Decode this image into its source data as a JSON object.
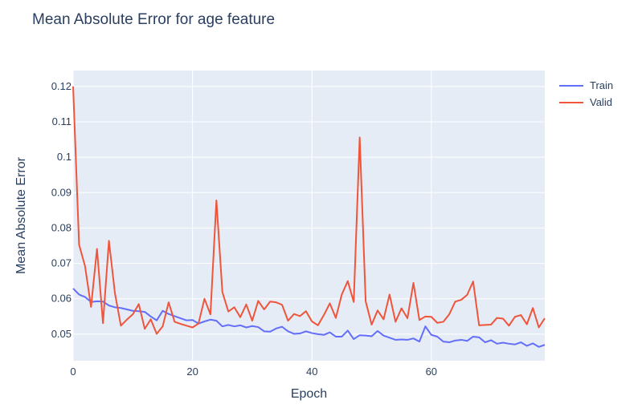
{
  "chart_data": {
    "type": "line",
    "title": "Mean Absolute Error for age feature",
    "xlabel": "Epoch",
    "ylabel": "Mean Absolute Error",
    "xlim": [
      0,
      79
    ],
    "ylim": [
      0.0425,
      0.1245
    ],
    "xticks": [
      0,
      20,
      40,
      60
    ],
    "yticks": [
      0.05,
      0.06,
      0.07,
      0.08,
      0.09,
      0.1,
      0.11,
      0.12
    ],
    "ytick_labels": [
      "0.05",
      "0.06",
      "0.07",
      "0.08",
      "0.09",
      "0.1",
      "0.11",
      "0.12"
    ],
    "grid": true,
    "legend_position": "top-right",
    "background": "#e5ecf6",
    "series": [
      {
        "name": "Train",
        "color": "#636efa",
        "x": [
          0,
          1,
          2,
          3,
          4,
          5,
          6,
          7,
          8,
          9,
          10,
          11,
          12,
          13,
          14,
          15,
          16,
          17,
          18,
          19,
          20,
          21,
          22,
          23,
          24,
          25,
          26,
          27,
          28,
          29,
          30,
          31,
          32,
          33,
          34,
          35,
          36,
          37,
          38,
          39,
          40,
          41,
          42,
          43,
          44,
          45,
          46,
          47,
          48,
          49,
          50,
          51,
          52,
          53,
          54,
          55,
          56,
          57,
          58,
          59,
          60,
          61,
          62,
          63,
          64,
          65,
          66,
          67,
          68,
          69,
          70,
          71,
          72,
          73,
          74,
          75,
          76,
          77,
          78,
          79
        ],
        "values": [
          0.0629,
          0.0612,
          0.0605,
          0.0591,
          0.0593,
          0.0592,
          0.0581,
          0.0576,
          0.0574,
          0.057,
          0.0566,
          0.0565,
          0.0563,
          0.055,
          0.0539,
          0.0566,
          0.0557,
          0.0551,
          0.0545,
          0.0539,
          0.054,
          0.053,
          0.0536,
          0.0541,
          0.0538,
          0.0522,
          0.0526,
          0.0522,
          0.0525,
          0.0519,
          0.0523,
          0.052,
          0.0508,
          0.0507,
          0.0516,
          0.0521,
          0.0508,
          0.0501,
          0.0502,
          0.0508,
          0.0503,
          0.05,
          0.0498,
          0.0505,
          0.0493,
          0.0493,
          0.051,
          0.0486,
          0.0497,
          0.0496,
          0.0494,
          0.0509,
          0.0496,
          0.049,
          0.0484,
          0.0485,
          0.0484,
          0.0488,
          0.0479,
          0.0522,
          0.0498,
          0.0493,
          0.0479,
          0.0477,
          0.0482,
          0.0484,
          0.0481,
          0.0493,
          0.0491,
          0.0477,
          0.0483,
          0.0473,
          0.0476,
          0.0473,
          0.0471,
          0.0477,
          0.0467,
          0.0474,
          0.0464,
          0.047
        ]
      },
      {
        "name": "Valid",
        "color": "#ef553b",
        "x": [
          0,
          1,
          2,
          3,
          4,
          5,
          6,
          7,
          8,
          9,
          10,
          11,
          12,
          13,
          14,
          15,
          16,
          17,
          18,
          19,
          20,
          21,
          22,
          23,
          24,
          25,
          26,
          27,
          28,
          29,
          30,
          31,
          32,
          33,
          34,
          35,
          36,
          37,
          38,
          39,
          40,
          41,
          42,
          43,
          44,
          45,
          46,
          47,
          48,
          49,
          50,
          51,
          52,
          53,
          54,
          55,
          56,
          57,
          58,
          59,
          60,
          61,
          62,
          63,
          64,
          65,
          66,
          67,
          68,
          69,
          70,
          71,
          72,
          73,
          74,
          75,
          76,
          77,
          78,
          79
        ],
        "values": [
          0.12,
          0.0753,
          0.0692,
          0.0577,
          0.0741,
          0.0531,
          0.0764,
          0.0616,
          0.0524,
          0.0541,
          0.0556,
          0.0585,
          0.0515,
          0.0542,
          0.0501,
          0.0522,
          0.059,
          0.0535,
          0.0529,
          0.0524,
          0.0519,
          0.053,
          0.06,
          0.0556,
          0.0878,
          0.0619,
          0.0564,
          0.0576,
          0.0548,
          0.0584,
          0.0538,
          0.0594,
          0.057,
          0.0592,
          0.059,
          0.0583,
          0.0538,
          0.0557,
          0.0551,
          0.0565,
          0.0536,
          0.0525,
          0.0554,
          0.0587,
          0.0546,
          0.0612,
          0.065,
          0.0591,
          0.1056,
          0.0593,
          0.0527,
          0.0567,
          0.0542,
          0.0612,
          0.0535,
          0.0573,
          0.0545,
          0.0645,
          0.054,
          0.055,
          0.0549,
          0.0532,
          0.0535,
          0.0556,
          0.0592,
          0.0597,
          0.0611,
          0.0649,
          0.0525,
          0.0526,
          0.0527,
          0.0546,
          0.0544,
          0.0524,
          0.0549,
          0.0554,
          0.0528,
          0.0574,
          0.0519,
          0.0545
        ]
      }
    ]
  }
}
